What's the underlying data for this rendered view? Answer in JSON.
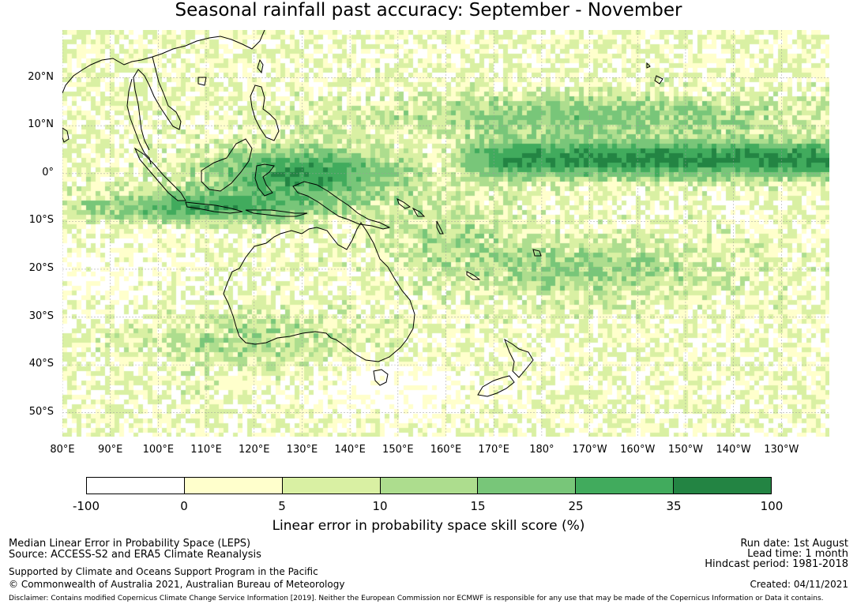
{
  "title": "Seasonal rainfall past accuracy: September - November",
  "map": {
    "lon_min": 80,
    "lon_max": 240,
    "lat_min": -55,
    "lat_max": 30,
    "lat_labels": [
      "20°N",
      "10°N",
      "0°",
      "10°S",
      "20°S",
      "30°S",
      "40°S",
      "50°S"
    ],
    "lat_values": [
      20,
      10,
      0,
      -10,
      -20,
      -30,
      -40,
      -50
    ],
    "lon_labels": [
      "80°E",
      "90°E",
      "100°E",
      "110°E",
      "120°E",
      "130°E",
      "140°E",
      "150°E",
      "160°E",
      "170°E",
      "180°",
      "170°W",
      "160°W",
      "150°W",
      "140°W",
      "130°W"
    ],
    "lon_values": [
      80,
      90,
      100,
      110,
      120,
      130,
      140,
      150,
      160,
      170,
      180,
      190,
      200,
      210,
      220,
      230
    ],
    "coastline_color": "#000000",
    "gridline_color": "#9a9a9a"
  },
  "colorbar": {
    "label": "Linear error in probability space skill score (%)",
    "ticks": [
      "-100",
      "0",
      "5",
      "10",
      "15",
      "25",
      "35",
      "100"
    ],
    "colors": [
      "#ffffff",
      "#ffffcc",
      "#d9f0a3",
      "#addd8e",
      "#78c679",
      "#41ab5d",
      "#238443"
    ]
  },
  "footer": {
    "left": [
      "Median Linear Error in Probability Space (LEPS)",
      "Source: ACCESS-S2 and ERA5 Climate Reanalysis",
      "Supported by Climate and Oceans Support Program in the Pacific",
      "© Commonwealth of Australia 2021, Australian Bureau of Meteorology"
    ],
    "right": [
      "Run date: 1st August",
      "Lead time: 1 month",
      "Hindcast period: 1981-2018",
      "Created: 04/11/2021"
    ],
    "disclaimer": "Disclaimer: Contains modified Copernicus Climate Change Service Information [2019]. Neither the European Commission nor ECMWF is responsible for any use that may be made of the Copernicus Information or Data it contains."
  }
}
